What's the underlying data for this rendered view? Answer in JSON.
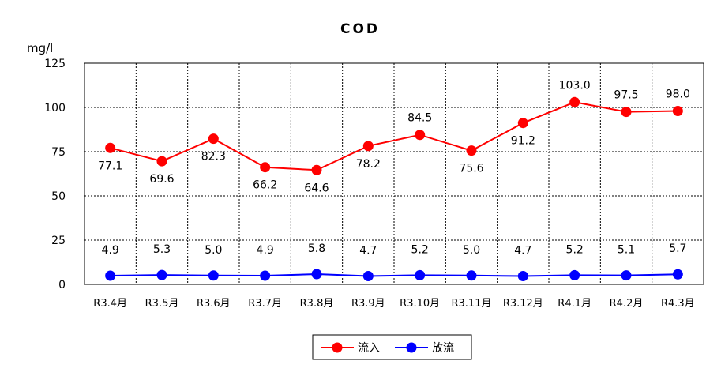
{
  "chart_data": {
    "type": "line",
    "title": "COD",
    "ylabel": "mg/l",
    "ylim": [
      0,
      125
    ],
    "yticks": [
      0,
      25,
      50,
      75,
      100,
      125
    ],
    "grid": true,
    "legend_position": "bottom",
    "categories": [
      "R3.4月",
      "R3.5月",
      "R3.6月",
      "R3.7月",
      "R3.8月",
      "R3.9月",
      "R3.10月",
      "R3.11月",
      "R3.12月",
      "R4.1月",
      "R4.2月",
      "R4.3月"
    ],
    "series": [
      {
        "name": "流入",
        "color": "#ff0000",
        "values": [
          77.1,
          69.6,
          82.3,
          66.2,
          64.6,
          78.2,
          84.5,
          75.6,
          91.2,
          103.0,
          97.5,
          98.0
        ],
        "labels": [
          "77.1",
          "69.6",
          "82.3",
          "66.2",
          "64.6",
          "78.2",
          "84.5",
          "75.6",
          "91.2",
          "103.0",
          "97.5",
          "98.0"
        ]
      },
      {
        "name": "放流",
        "color": "#0000ff",
        "values": [
          4.9,
          5.3,
          5.0,
          4.9,
          5.8,
          4.7,
          5.2,
          5.0,
          4.7,
          5.2,
          5.1,
          5.7
        ],
        "labels": [
          "4.9",
          "5.3",
          "5.0",
          "4.9",
          "5.8",
          "4.7",
          "5.2",
          "5.0",
          "4.7",
          "5.2",
          "5.1",
          "5.7"
        ]
      }
    ]
  }
}
